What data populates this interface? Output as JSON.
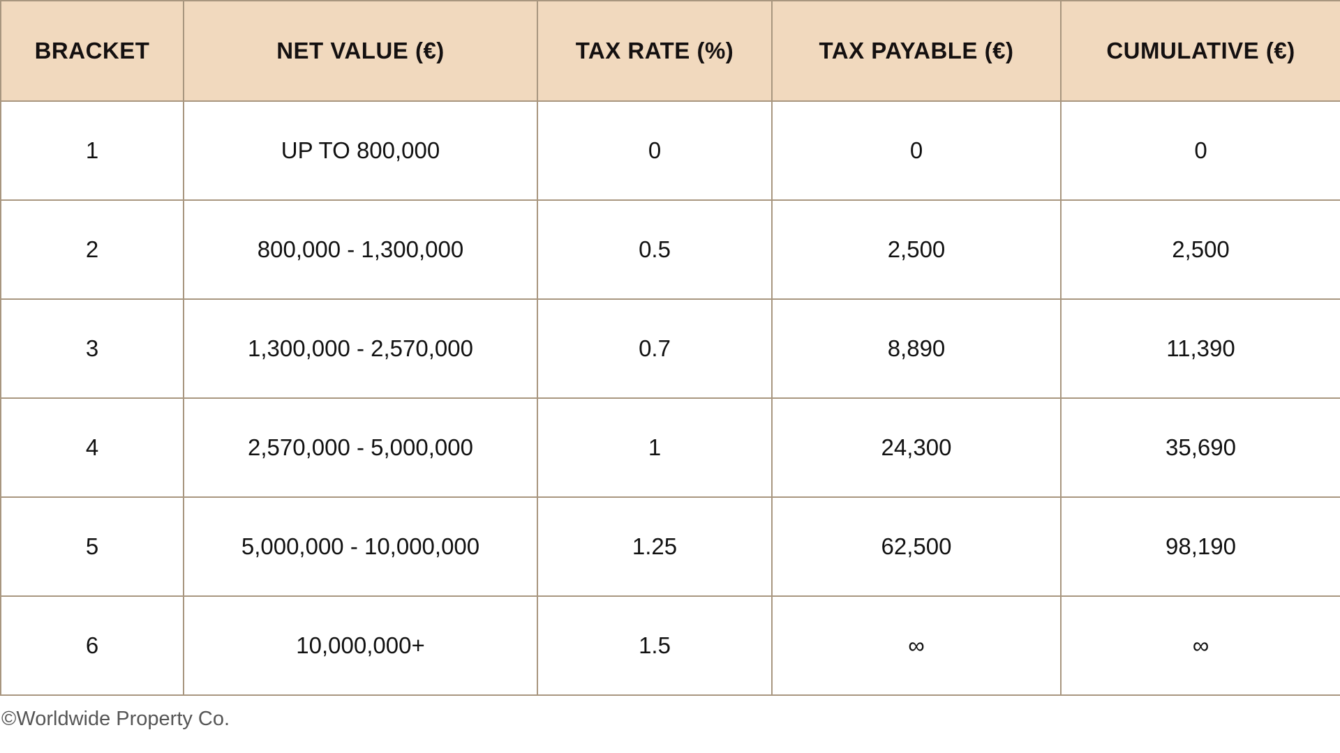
{
  "table": {
    "headers": [
      "BRACKET",
      "NET VALUE (€)",
      "TAX RATE (%)",
      "TAX PAYABLE (€)",
      "CUMULATIVE (€)"
    ],
    "rows": [
      [
        "1",
        "UP TO 800,000",
        "0",
        "0",
        "0"
      ],
      [
        "2",
        "800,000 - 1,300,000",
        "0.5",
        "2,500",
        "2,500"
      ],
      [
        "3",
        "1,300,000 - 2,570,000",
        "0.7",
        "8,890",
        "11,390"
      ],
      [
        "4",
        "2,570,000 - 5,000,000",
        "1",
        "24,300",
        "35,690"
      ],
      [
        "5",
        "5,000,000 - 10,000,000",
        "1.25",
        "62,500",
        "98,190"
      ],
      [
        "6",
        "10,000,000+",
        "1.5",
        "∞",
        "∞"
      ]
    ]
  },
  "footer": {
    "copyright": "©Worldwide Property Co."
  },
  "colors": {
    "header_bg": "#f1d9be",
    "border": "#a8967f",
    "text": "#111111"
  }
}
